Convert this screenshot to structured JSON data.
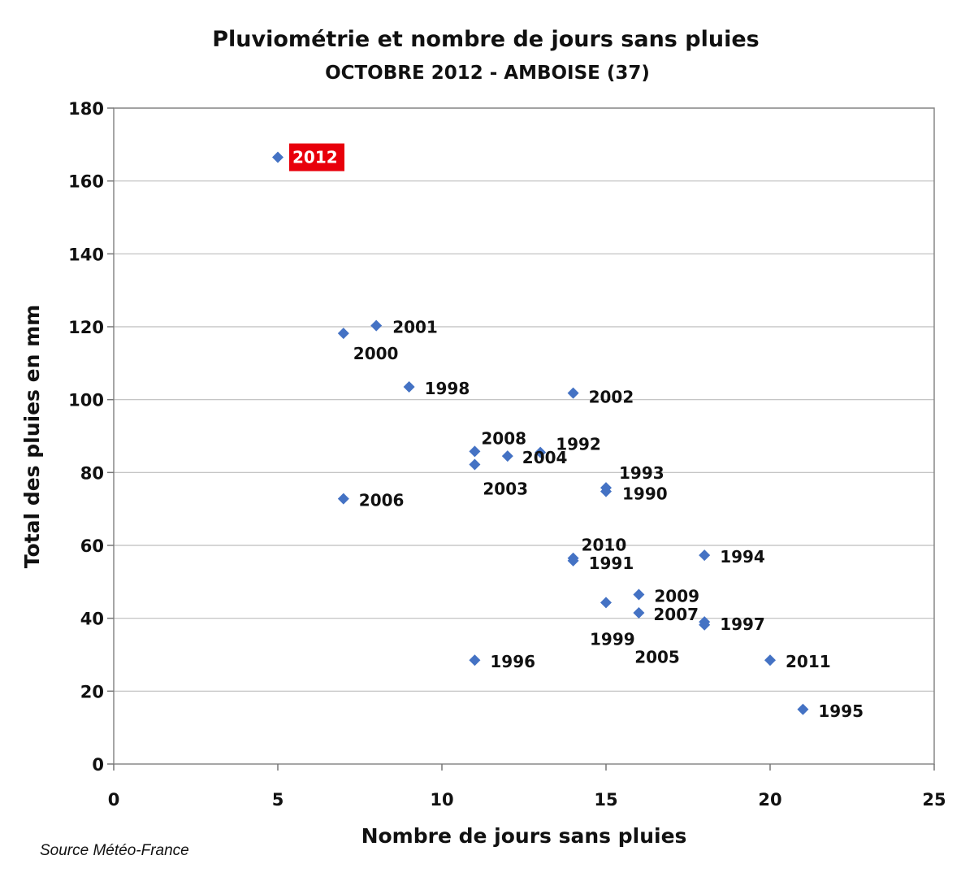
{
  "chart_data": {
    "type": "scatter",
    "title": "Pluviométrie et nombre de jours sans pluies",
    "subtitle": "OCTOBRE 2012 - AMBOISE (37)",
    "xlabel": "Nombre de jours sans pluies",
    "ylabel": "Total des pluies en mm",
    "xlim": [
      0,
      25
    ],
    "ylim": [
      0,
      180
    ],
    "xticks": [
      "0",
      "5",
      "10",
      "15",
      "20",
      "25"
    ],
    "yticks": [
      "0",
      "20",
      "40",
      "60",
      "80",
      "100",
      "120",
      "140",
      "160",
      "180"
    ],
    "grid": "horizontal",
    "marker_color": "#4472C4",
    "highlight_color": "#E8000B",
    "points": [
      {
        "label": "2012",
        "x": 5,
        "y": 166.5,
        "highlight": true
      },
      {
        "label": "2001",
        "x": 8,
        "y": 120.3
      },
      {
        "label": "2000",
        "x": 7,
        "y": 118.2
      },
      {
        "label": "1998",
        "x": 9,
        "y": 103.5
      },
      {
        "label": "2002",
        "x": 14,
        "y": 101.8
      },
      {
        "label": "2008",
        "x": 11,
        "y": 85.8
      },
      {
        "label": "1992",
        "x": 13,
        "y": 85.5
      },
      {
        "label": "2004",
        "x": 12,
        "y": 84.5
      },
      {
        "label": "2003",
        "x": 11,
        "y": 82.2
      },
      {
        "label": "1993",
        "x": 15,
        "y": 75.8
      },
      {
        "label": "1990",
        "x": 15,
        "y": 74.8
      },
      {
        "label": "2006",
        "x": 7,
        "y": 72.8
      },
      {
        "label": "1994",
        "x": 18,
        "y": 57.3
      },
      {
        "label": "2010",
        "x": 14,
        "y": 56.5
      },
      {
        "label": "1991",
        "x": 14,
        "y": 55.8
      },
      {
        "label": "2009",
        "x": 16,
        "y": 46.5
      },
      {
        "label": "1999",
        "x": 15,
        "y": 44.3
      },
      {
        "label": "2007",
        "x": 16,
        "y": 41.5
      },
      {
        "label": "1997",
        "x": 18,
        "y": 39.0
      },
      {
        "label": "2005",
        "x": 18,
        "y": 38.2
      },
      {
        "label": "1996",
        "x": 11,
        "y": 28.5
      },
      {
        "label": "2011",
        "x": 20,
        "y": 28.5
      },
      {
        "label": "1995",
        "x": 21,
        "y": 15.0
      }
    ]
  },
  "source": "Source Météo-France"
}
